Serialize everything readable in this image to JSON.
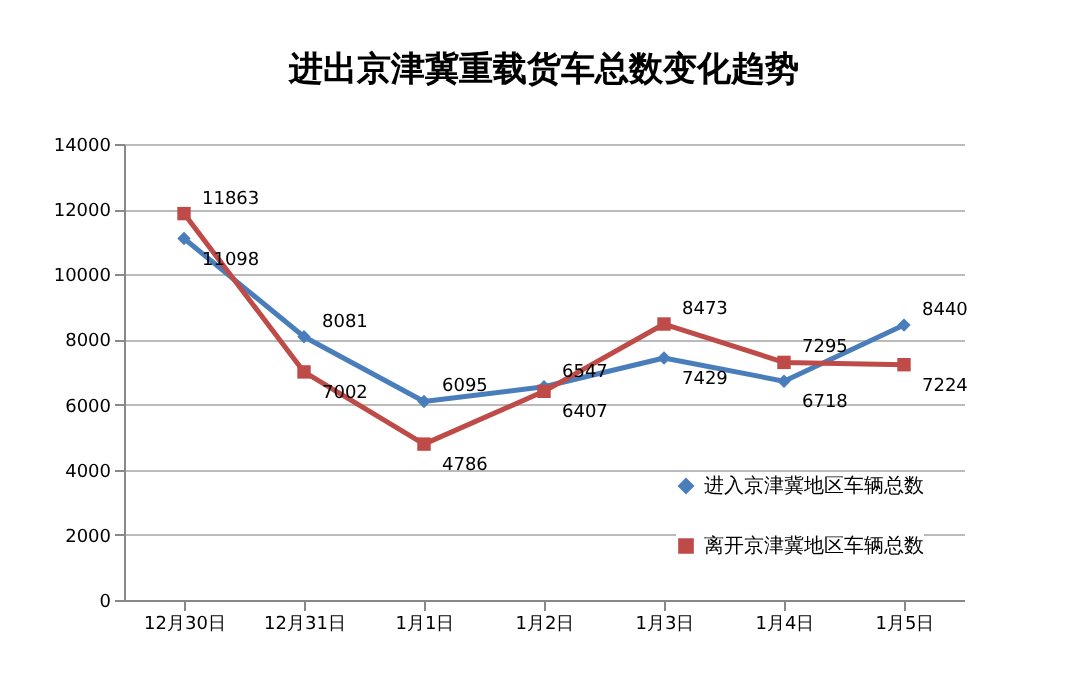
{
  "chart_data": {
    "type": "line",
    "title": "进出京津冀重载货车总数变化趋势",
    "categories": [
      "12月30日",
      "12月31日",
      "1月1日",
      "1月2日",
      "1月3日",
      "1月4日",
      "1月5日"
    ],
    "series": [
      {
        "name": "进入京津冀地区车辆总数",
        "color": "#4a7ebb",
        "marker": "diamond",
        "values": [
          11098,
          8081,
          6095,
          6547,
          7429,
          6718,
          8440
        ]
      },
      {
        "name": "离开京津冀地区车辆总数",
        "color": "#be4b48",
        "marker": "square",
        "values": [
          11863,
          7002,
          4786,
          6407,
          8473,
          7295,
          7224
        ]
      }
    ],
    "ylim": [
      0,
      14000
    ],
    "yticks": [
      0,
      2000,
      4000,
      6000,
      8000,
      10000,
      12000,
      14000
    ],
    "grid": "y",
    "legend": "bottom right",
    "data_labels": true,
    "line_style": "solid"
  }
}
